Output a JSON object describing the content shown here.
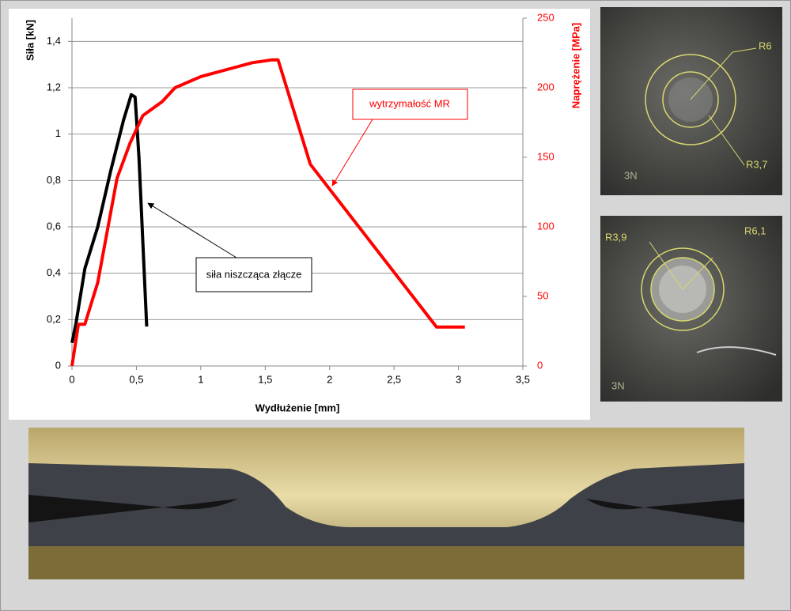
{
  "chart_data": {
    "type": "line",
    "xlabel": "Wydłużenie [mm]",
    "ylabel": "Siła [kN]",
    "y2label": "Naprężenie [MPa]",
    "xlim": [
      0,
      3.5
    ],
    "xticks": [
      0,
      {
        "value": 0.5,
        "label": "0,5"
      },
      1,
      {
        "value": 1.5,
        "label": "1,5"
      },
      2,
      {
        "value": 2.5,
        "label": "2,5"
      },
      3,
      {
        "value": 3.5,
        "label": "3,5"
      }
    ],
    "ylim": [
      0,
      1.5
    ],
    "yticks": [
      0,
      {
        "value": 0.2,
        "label": "0,2"
      },
      {
        "value": 0.4,
        "label": "0,4"
      },
      {
        "value": 0.6,
        "label": "0,6"
      },
      {
        "value": 0.8,
        "label": "0,8"
      },
      1,
      {
        "value": 1.2,
        "label": "1,2"
      },
      {
        "value": 1.4,
        "label": "1,4"
      }
    ],
    "y2lim": [
      0,
      250
    ],
    "y2ticks": [
      0,
      50,
      100,
      150,
      200,
      250
    ],
    "grid": true,
    "series": [
      {
        "color": "#000000",
        "x": [
          0,
          0.03,
          0.1,
          0.2,
          0.3,
          0.4,
          0.46,
          0.49,
          0.52,
          0.58
        ],
        "values": [
          0.1,
          0.18,
          0.42,
          0.6,
          0.84,
          1.06,
          1.17,
          1.16,
          0.9,
          0.17
        ]
      },
      {
        "color": "#ff0000",
        "axis": "y2",
        "x": [
          0,
          0.05,
          0.1,
          0.15,
          0.2,
          0.3,
          0.35,
          0.45,
          0.55,
          0.7,
          0.8,
          1.0,
          1.2,
          1.4,
          1.55,
          1.6,
          1.85,
          2.83,
          3.05
        ],
        "values": [
          0,
          30,
          30,
          45,
          60,
          110,
          135,
          160,
          180,
          190,
          200,
          208,
          213,
          218,
          220,
          220,
          145,
          28,
          28
        ]
      }
    ],
    "annotations": [
      "siła niszcząca złącze",
      "wytrzymałość MR"
    ]
  },
  "images": [
    {
      "labels": [
        "R6",
        "R3,7",
        "3N"
      ]
    },
    {
      "labels": [
        "R3,9",
        "R6,1",
        "3N"
      ]
    }
  ]
}
